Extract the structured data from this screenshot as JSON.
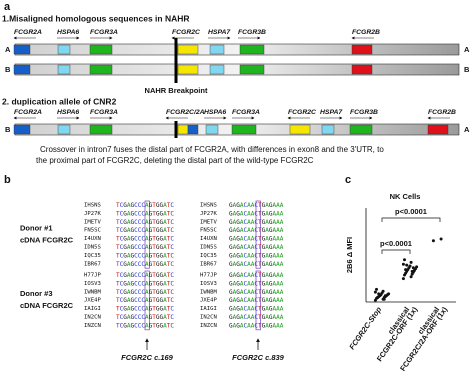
{
  "panel_a": {
    "label": "a",
    "section1": "1.Misaligned homologous sequences in NAHR",
    "row1_genes": [
      "FCGR2A",
      "HSPA6",
      "FCGR3A",
      "FCGR2C",
      "HSPA7",
      "FCGR3B",
      "FCGR2B"
    ],
    "allele_labels": [
      "A",
      "B"
    ],
    "breakpoint": "NAHR Breakpoint",
    "section2": "2. duplication allele of CNR2",
    "row2_genes": [
      "FCGR2A",
      "HSPA6",
      "FCGR3A",
      "FCGR2C/2A",
      "HSPA6",
      "FCGR3A",
      "FCGR2C",
      "HSPA7",
      "FCGR3B",
      "FCGR2B"
    ],
    "caption": [
      "Crossover in intron7 fuses the distal part of FCGR2A, with differences in exon8 and the 3'UTR, to",
      "the proximal part of FCGR2C, deleting the distal part of the wild-type FCGR2C"
    ]
  },
  "panel_b": {
    "label": "b",
    "donors": [
      {
        "title": [
          "Donor #1",
          "cDNA FCGR2C"
        ],
        "clones": [
          "IHSNS",
          "JP27K",
          "IMETV",
          "FN5SC",
          "I4UXN",
          "IDN5S",
          "IQC35",
          "IBR67"
        ]
      },
      {
        "title": [
          "Donor #3",
          "cDNA FCGR2C"
        ],
        "clones": [
          "H77JP",
          "IOSV3",
          "IWNBM",
          "JXE4P",
          "IAIGI",
          "IN2CN",
          "INZCN"
        ]
      }
    ],
    "seq_left": "TCGAGCCCAGTGGATC",
    "seq_right": "GAGACAACTGAGAAA",
    "markers": [
      "FCGR2C c.169",
      "FCGR2C c.839"
    ]
  },
  "panel_c": {
    "label": "c",
    "title": "NK Cells",
    "y_label": "2B6 Δ MFI",
    "ylim": [
      0,
      1
    ],
    "groups": [
      {
        "name": [
          "FCGR2C-Stop"
        ],
        "values": [
          0.02,
          0.03,
          0.04,
          0.05,
          0.05,
          0.06,
          0.06,
          0.07,
          0.07,
          0.08,
          0.08,
          0.09,
          0.1,
          0.11,
          0.12,
          0.14,
          0.03,
          0.05,
          0.07,
          0.09
        ]
      },
      {
        "name": [
          "classical",
          "FCGR2C-ORF (1x)"
        ],
        "values": [
          0.26,
          0.28,
          0.3,
          0.31,
          0.32,
          0.33,
          0.34,
          0.35,
          0.36,
          0.37,
          0.38,
          0.39,
          0.4,
          0.42,
          0.44,
          0.47,
          0.34,
          0.36,
          0.38,
          0.41
        ]
      },
      {
        "name": [
          "classical",
          "FCGR2C/2A-ORF (1x)"
        ],
        "values": [
          0.68,
          0.7
        ]
      }
    ],
    "comparisons": [
      "p<0.0001",
      "p<0.0001"
    ]
  }
}
